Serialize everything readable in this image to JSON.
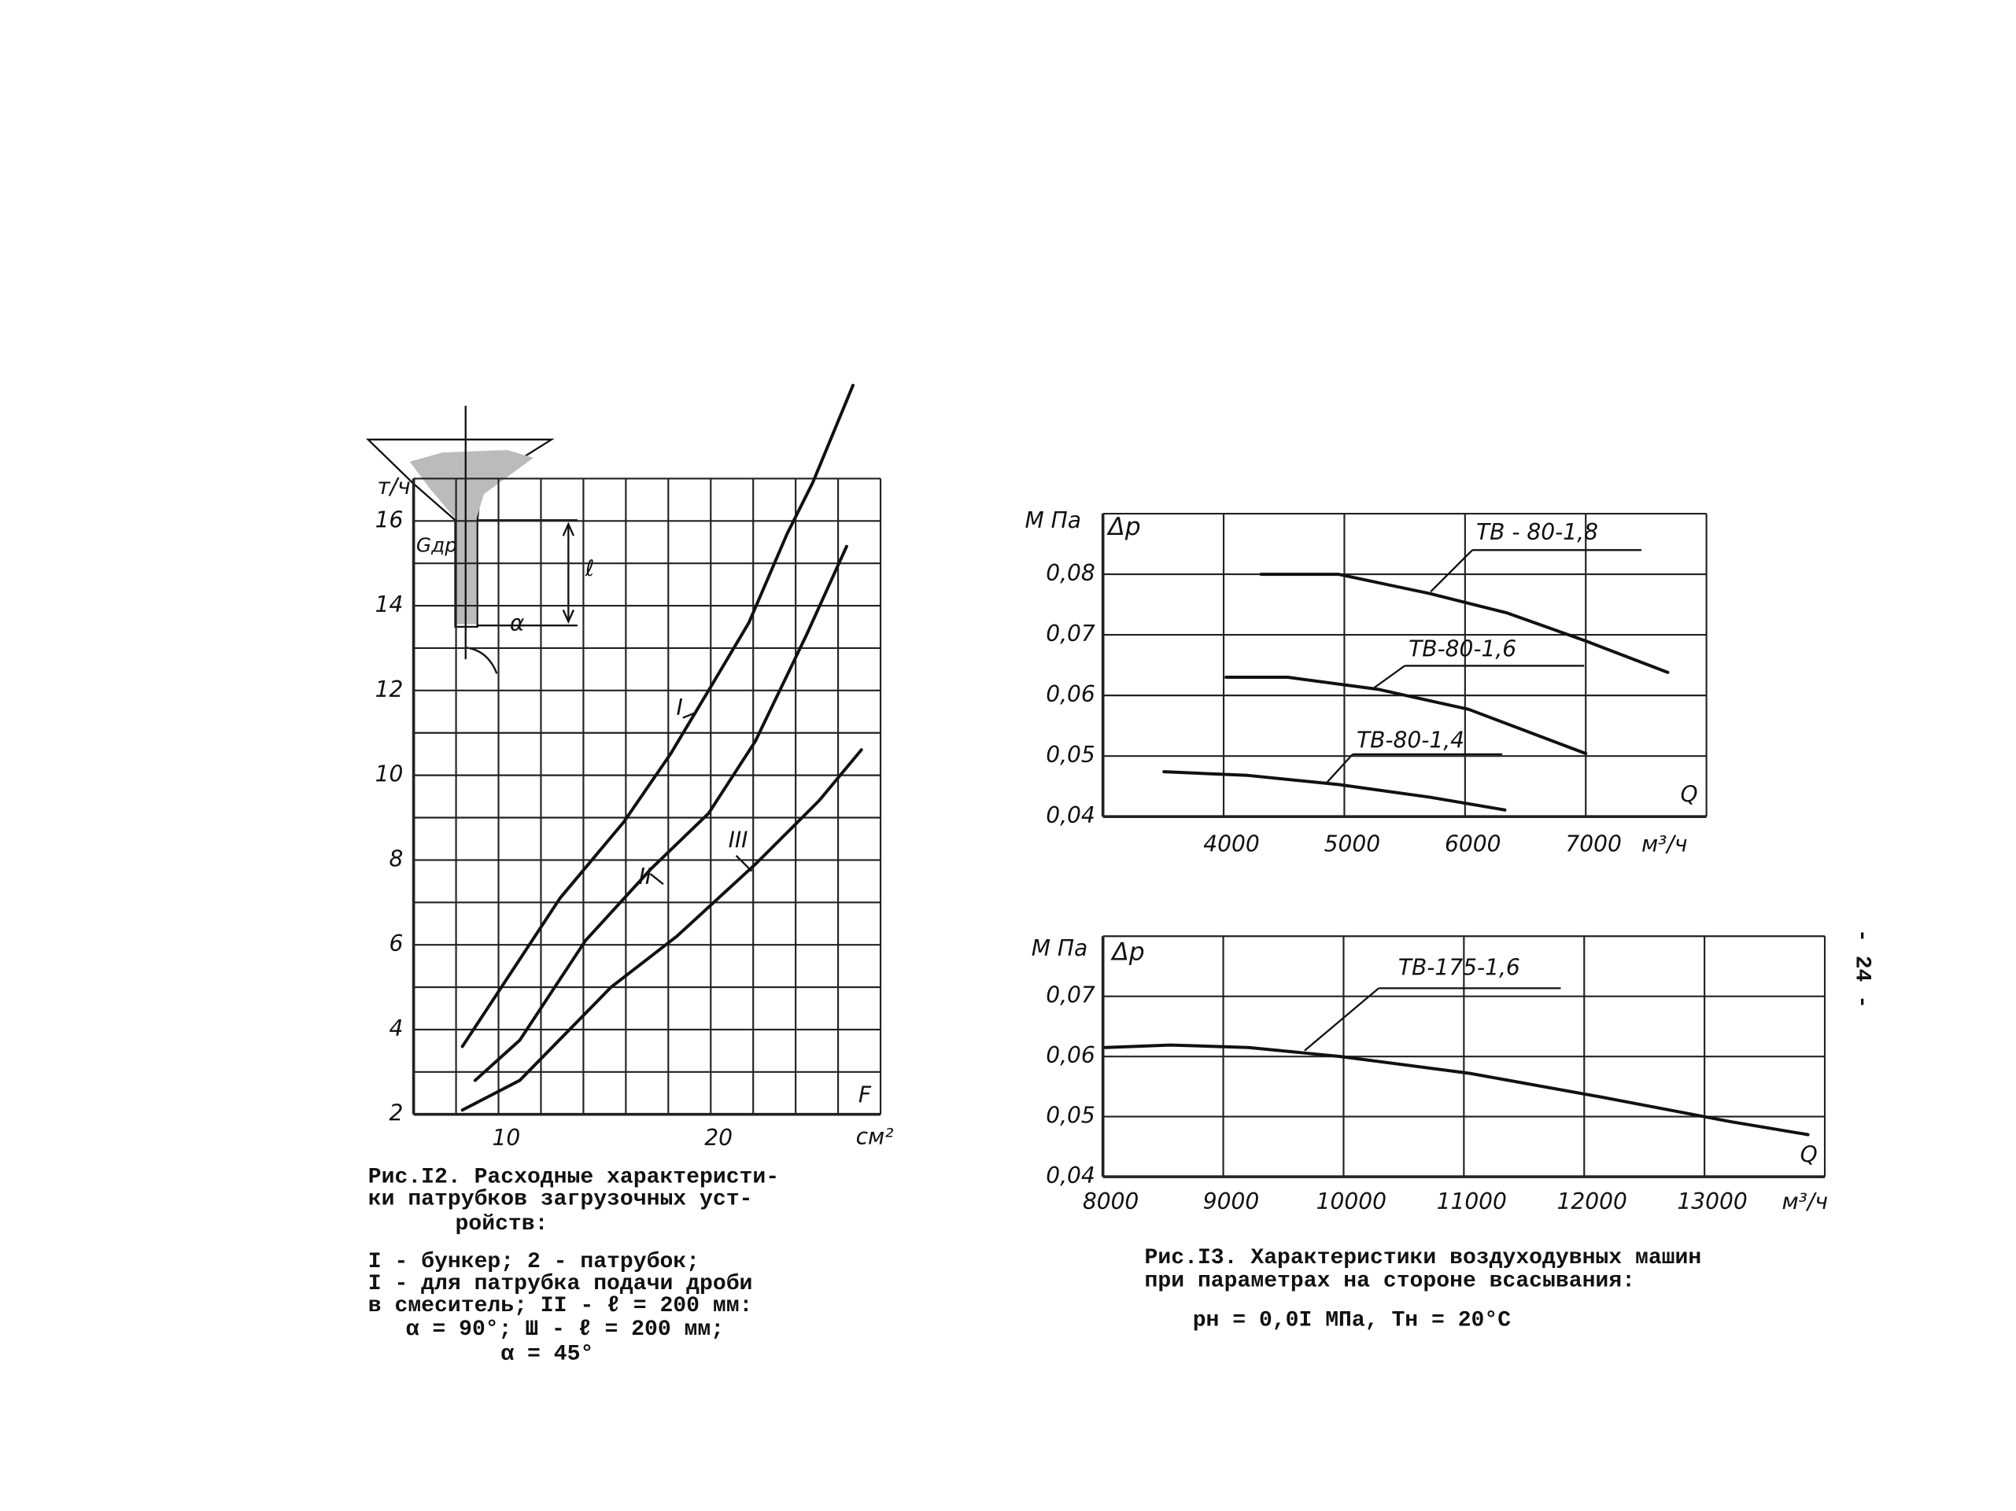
{
  "chart_data": [
    {
      "type": "line",
      "y_unit": "т/ч",
      "x_label": "F",
      "x_unit": "см²",
      "xlim": [
        6,
        28
      ],
      "ylim": [
        2,
        17
      ],
      "xticks": [
        10,
        20
      ],
      "yticks": [
        2,
        4,
        6,
        8,
        10,
        12,
        14,
        16
      ],
      "x_grid": [
        6,
        8,
        10,
        12,
        14,
        16,
        18,
        20,
        22,
        24,
        26,
        28
      ],
      "y_grid": [
        2,
        3,
        4,
        5,
        6,
        7,
        8,
        9,
        10,
        11,
        12,
        13,
        14,
        15,
        16,
        17
      ],
      "grid": true,
      "funnel_labels": {
        "flow": "Gдр",
        "length": "ℓ",
        "angle": "α"
      },
      "series": [
        {
          "name": "I",
          "color": "#111",
          "x": [
            8.3,
            12.9,
            15.9,
            18.1,
            19.9,
            21.8,
            23.6,
            24.8,
            26.7
          ],
          "values": [
            3.6,
            7.1,
            8.9,
            10.5,
            12,
            13.6,
            15.7,
            16.9,
            19.2
          ]
        },
        {
          "name": "II",
          "color": "#111",
          "x": [
            8.9,
            11.0,
            14.1,
            17.2,
            19.9,
            22.1,
            24.5,
            26.4
          ],
          "values": [
            2.8,
            3.75,
            6.1,
            7.8,
            9.1,
            10.8,
            13.3,
            15.4
          ]
        },
        {
          "name": "III",
          "color": "#111",
          "x": [
            8.3,
            11.0,
            15.3,
            18.4,
            22.1,
            25.1,
            27.1
          ],
          "values": [
            2.1,
            2.8,
            5.0,
            6.2,
            7.9,
            9.4,
            10.6
          ]
        }
      ],
      "caption": [
        "Рис.I2. Расходные характеристи-",
        "ки патрубков загрузочных уст-",
        "ройств:",
        "I - бункер; 2 - патрубок;",
        "I - для патрубка подачи дроби",
        "в смеситель; II - ℓ = 200 мм:",
        "α = 90°; Ш - ℓ = 200 мм;",
        "α = 45°"
      ]
    },
    {
      "type": "line",
      "y_unit": "М Па",
      "y_label": "Δp",
      "x_label": "Q",
      "x_unit": "м³/ч",
      "xlim": [
        3000,
        8000
      ],
      "ylim": [
        0.04,
        0.09
      ],
      "xticks": [
        4000,
        5000,
        6000,
        7000
      ],
      "yticks": [
        {
          "value": 0.04,
          "label": "0,04"
        },
        {
          "value": 0.05,
          "label": "0,05"
        },
        {
          "value": 0.06,
          "label": "0,06"
        },
        {
          "value": 0.07,
          "label": "0,07"
        },
        {
          "value": 0.08,
          "label": "0,08"
        }
      ],
      "x_grid": [
        3000,
        4000,
        5000,
        6000,
        7000,
        8000
      ],
      "y_grid": [
        0.04,
        0.05,
        0.06,
        0.07,
        0.08,
        0.09
      ],
      "grid": true,
      "series": [
        {
          "name": "ТВ - 80-1,8",
          "color": "#111",
          "x": [
            4310,
            4950,
            5710,
            6350,
            7000,
            7680
          ],
          "values": [
            0.08,
            0.08,
            0.0768,
            0.0736,
            0.069,
            0.0638
          ]
        },
        {
          "name": "ТВ-80-1,6",
          "color": "#111",
          "x": [
            4020,
            4530,
            5280,
            6030,
            7000
          ],
          "values": [
            0.063,
            0.063,
            0.061,
            0.0577,
            0.0504
          ]
        },
        {
          "name": "ТВ-80-1,4",
          "color": "#111",
          "x": [
            3505,
            4200,
            4950,
            5710,
            6330
          ],
          "values": [
            0.0474,
            0.0468,
            0.0453,
            0.0432,
            0.0411
          ]
        }
      ]
    },
    {
      "type": "line",
      "y_unit": "М Па",
      "y_label": "Δp",
      "x_label": "Q",
      "x_unit": "м³/ч",
      "xlim": [
        8000,
        14000
      ],
      "ylim": [
        0.04,
        0.08
      ],
      "xticks": [
        8000,
        9000,
        10000,
        11000,
        12000,
        13000
      ],
      "yticks": [
        {
          "value": 0.04,
          "label": "0,04"
        },
        {
          "value": 0.05,
          "label": "0,05"
        },
        {
          "value": 0.06,
          "label": "0,06"
        },
        {
          "value": 0.07,
          "label": "0,07"
        }
      ],
      "x_grid": [
        8000,
        9000,
        10000,
        11000,
        12000,
        13000,
        14000
      ],
      "y_grid": [
        0.04,
        0.05,
        0.06,
        0.07,
        0.08
      ],
      "grid": true,
      "series": [
        {
          "name": "ТВ-175-1,6",
          "color": "#111",
          "x": [
            8020,
            8560,
            9210,
            9970,
            11050,
            12130,
            13210,
            13860
          ],
          "values": [
            0.0615,
            0.0619,
            0.0615,
            0.06,
            0.0572,
            0.0533,
            0.0492,
            0.047
          ]
        }
      ],
      "caption": [
        "Рис.I3. Характеристики воздуходувных машин",
        "при параметрах на стороне всасывания:",
        "pн = 0,0I МПа, Tн = 20°С"
      ]
    }
  ],
  "page_number": "- 24 -"
}
